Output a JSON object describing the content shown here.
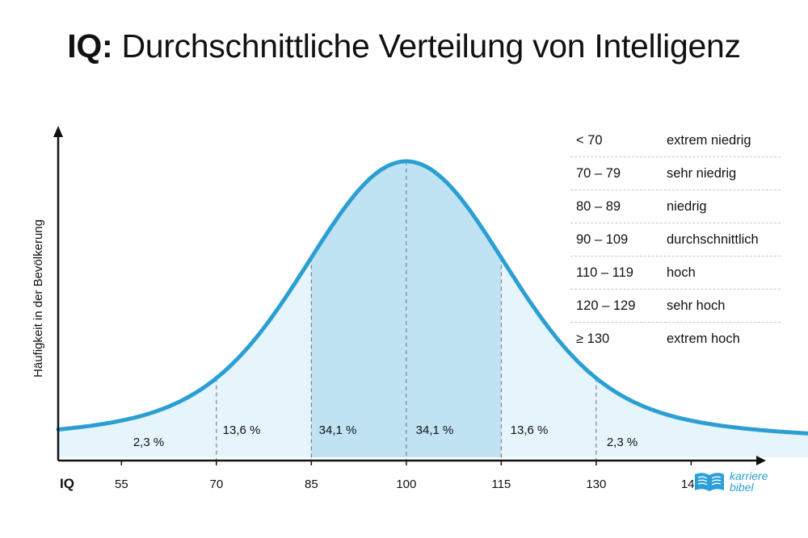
{
  "title": {
    "prefix": "IQ:",
    "rest": "Durchschnittliche Verteilung von Intelligenz"
  },
  "chart_data": {
    "type": "area",
    "distribution": "normal",
    "mean": 100,
    "sd": 15,
    "xlabel": "IQ",
    "ylabel": "Häufigkeit in der Bevölkerung",
    "xlim": [
      45,
      165
    ],
    "x_ticks": [
      55,
      70,
      85,
      100,
      115,
      130,
      145
    ],
    "boundaries": [
      70,
      85,
      100,
      115,
      130
    ],
    "segments": [
      {
        "from": 45,
        "to": 70,
        "label": "2,3 %",
        "value": 2.3,
        "shade": "light"
      },
      {
        "from": 70,
        "to": 85,
        "label": "13,6 %",
        "value": 13.6,
        "shade": "light"
      },
      {
        "from": 85,
        "to": 100,
        "label": "34,1 %",
        "value": 34.1,
        "shade": "dark"
      },
      {
        "from": 100,
        "to": 115,
        "label": "34,1 %",
        "value": 34.1,
        "shade": "dark"
      },
      {
        "from": 115,
        "to": 130,
        "label": "13,6 %",
        "value": 13.6,
        "shade": "light"
      },
      {
        "from": 130,
        "to": 165,
        "label": "2,3 %",
        "value": 2.3,
        "shade": "light"
      }
    ],
    "colors": {
      "line": "#2b9fd3",
      "fill_light": "#e6f4fb",
      "fill_dark": "#bfe3f3"
    },
    "grid": false
  },
  "legend": [
    {
      "range": "< 70",
      "desc": "extrem niedrig"
    },
    {
      "range": "70 – 79",
      "desc": "sehr niedrig"
    },
    {
      "range": "80 – 89",
      "desc": "niedrig"
    },
    {
      "range": "90 – 109",
      "desc": "durchschnittlich"
    },
    {
      "range": "110 – 119",
      "desc": "hoch"
    },
    {
      "range": "120 – 129",
      "desc": "sehr hoch"
    },
    {
      "range": "≥ 130",
      "desc": "extrem hoch"
    }
  ],
  "brand": {
    "line1": "karriere",
    "line2": "bibel",
    "icon": "open-book-icon"
  }
}
